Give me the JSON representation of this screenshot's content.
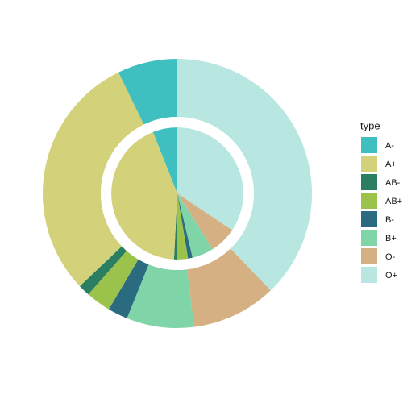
{
  "chart_data": {
    "type": "donut",
    "legend_title": "type",
    "categories": [
      "A-",
      "A+",
      "AB-",
      "AB+",
      "B-",
      "B+",
      "O-",
      "O+"
    ],
    "colors": [
      "#3fbfc0",
      "#d3d27a",
      "#2a7f62",
      "#9bc34c",
      "#2b6b80",
      "#7fd5a8",
      "#d4b083",
      "#b8e7e1"
    ],
    "series": [
      {
        "values": [
          7.2,
          29.9,
          1.4,
          3.0,
          2.4,
          8.1,
          10.2,
          37.8
        ]
      },
      {
        "values": [
          6.0,
          43.2,
          0.6,
          2.8,
          1.1,
          5.3,
          6.6,
          34.4
        ]
      }
    ]
  }
}
